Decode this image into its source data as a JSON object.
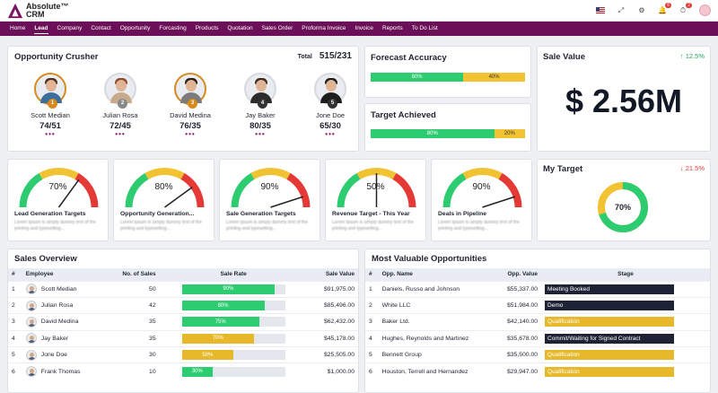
{
  "app": {
    "logo_line1": "Absolute™",
    "logo_line2": "CRM",
    "notification_count": "6",
    "alert_count": "2"
  },
  "nav": [
    "Home",
    "Lead",
    "Company",
    "Contact",
    "Opportunity",
    "Forcasting",
    "Products",
    "Quotation",
    "Sales Order",
    "Proforma Invoice",
    "Invoice",
    "Reports",
    "To Do List"
  ],
  "nav_active": "Lead",
  "crusher": {
    "title": "Opportunity Crusher",
    "total_label": "Total",
    "total_value": "515/231",
    "people": [
      {
        "name": "Scott Median",
        "score": "74/51",
        "rank": "1"
      },
      {
        "name": "Julian Rosa",
        "score": "72/45",
        "rank": "2"
      },
      {
        "name": "David Medina",
        "score": "76/35",
        "rank": "3"
      },
      {
        "name": "Jay Baker",
        "score": "80/35",
        "rank": "4"
      },
      {
        "name": "Jone Doe",
        "score": "65/30",
        "rank": "5"
      }
    ],
    "dots": "•••"
  },
  "forecast": {
    "title": "Forecast Accuracy",
    "green_pct": 60,
    "green_label": "60%",
    "yellow_label": "40%"
  },
  "target_achieved": {
    "title": "Target Achieved",
    "green_pct": 80,
    "green_label": "80%",
    "yellow_label": "20%"
  },
  "sale_value": {
    "title": "Sale Value",
    "trend": "↑ 12.5%",
    "value": "$ 2.56M"
  },
  "gauges": [
    {
      "value": 70,
      "label": "70%",
      "title": "Lead Generation Targets",
      "desc": "Lorem Ipsum is simply dummy text of the printing and typesetting..."
    },
    {
      "value": 80,
      "label": "80%",
      "title": "Opportunity Generation...",
      "desc": "Lorem Ipsum is simply dummy text of the printing and typesetting..."
    },
    {
      "value": 90,
      "label": "90%",
      "title": "Sale Generation Targets",
      "desc": "Lorem Ipsum is simply dummy text of the printing and typesetting..."
    },
    {
      "value": 50,
      "label": "50%",
      "title": "Revenue Target - This Year",
      "desc": "Lorem Ipsum is simply dummy text of the printing and typesetting..."
    },
    {
      "value": 90,
      "label": "90%",
      "title": "Deals in Pipeline",
      "desc": "Lorem Ipsum is simply dummy text of the printing and typesetting..."
    }
  ],
  "my_target": {
    "title": "My Target",
    "trend": "↓ 21.5%",
    "value": 70,
    "label": "70%"
  },
  "sales_overview": {
    "title": "Sales Overview",
    "headers": [
      "#",
      "Employee",
      "No. of Sales",
      "Sale Rate",
      "Sale Value"
    ],
    "rows": [
      {
        "n": "1",
        "name": "Scott Median",
        "sales": "50",
        "rate": 90,
        "rate_label": "90%",
        "color": "#2ecc71",
        "value": "$91,975.00"
      },
      {
        "n": "2",
        "name": "Julian Rosa",
        "sales": "42",
        "rate": 80,
        "rate_label": "80%",
        "color": "#2ecc71",
        "value": "$85,496.00"
      },
      {
        "n": "3",
        "name": "David Medina",
        "sales": "35",
        "rate": 75,
        "rate_label": "75%",
        "color": "#2ecc71",
        "value": "$62,432.00"
      },
      {
        "n": "4",
        "name": "Jay Baker",
        "sales": "35",
        "rate": 70,
        "rate_label": "70%",
        "color": "#e7b92a",
        "value": "$45,178.00"
      },
      {
        "n": "5",
        "name": "Jone Doe",
        "sales": "30",
        "rate": 50,
        "rate_label": "50%",
        "color": "#e7b92a",
        "value": "$25,505.00"
      },
      {
        "n": "6",
        "name": "Frank Thomas",
        "sales": "10",
        "rate": 30,
        "rate_label": "30%",
        "color": "#2ecc71",
        "value": "$1,000.00"
      }
    ]
  },
  "mvo": {
    "title": "Most Valuable Opportunities",
    "headers": [
      "#",
      "Opp. Name",
      "Opp. Value",
      "Stage"
    ],
    "rows": [
      {
        "n": "1",
        "name": "Daniels, Russo and Johnson",
        "value": "$55,337.00",
        "stage": "Meeting Booked",
        "color": "#1e2235"
      },
      {
        "n": "2",
        "name": "White LLC",
        "value": "$51,984.00",
        "stage": "Demo",
        "color": "#1e2235"
      },
      {
        "n": "3",
        "name": "Baker Ltd.",
        "value": "$42,140.00",
        "stage": "Qualification",
        "color": "#e7b92a"
      },
      {
        "n": "4",
        "name": "Hughes, Reynolds and Martinez",
        "value": "$35,678.00",
        "stage": "Commit/Waiting for Signed Contract",
        "color": "#1e2235"
      },
      {
        "n": "5",
        "name": "Bennett Group",
        "value": "$35,500.00",
        "stage": "Qualification",
        "color": "#e7b92a"
      },
      {
        "n": "6",
        "name": "Houston, Terrell and Hernandez",
        "value": "$29,947.00",
        "stage": "Qualification",
        "color": "#e7b92a"
      }
    ]
  },
  "colors": {
    "nav": "#6b0f58",
    "green": "#2ecc71",
    "yellow": "#f1c232",
    "red": "#e53935"
  }
}
